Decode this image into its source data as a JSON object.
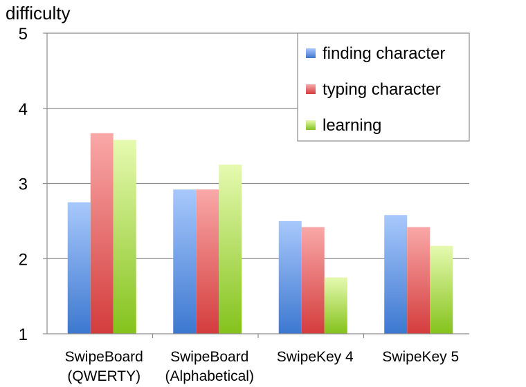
{
  "chart_data": {
    "type": "bar",
    "title": "",
    "xlabel": "",
    "ylabel": "difficulty",
    "ylim": [
      1,
      5
    ],
    "yticks": [
      1,
      2,
      3,
      4,
      5
    ],
    "grid": true,
    "legend_position": "top-right",
    "categories": [
      [
        "SwipeBoard",
        "(QWERTY)"
      ],
      [
        "SwipeBoard",
        "(Alphabetical)"
      ],
      [
        "SwipeKey 4"
      ],
      [
        "SwipeKey 5"
      ]
    ],
    "series": [
      {
        "name": "finding character",
        "color_top": "#a8c8fc",
        "color_bottom": "#3c78d0",
        "values": [
          2.75,
          2.92,
          2.5,
          2.58
        ]
      },
      {
        "name": "typing character",
        "color_top": "#f9a8a8",
        "color_bottom": "#d43c3c",
        "values": [
          3.67,
          2.92,
          2.42,
          2.42
        ]
      },
      {
        "name": "learning",
        "color_top": "#e6fab0",
        "color_bottom": "#84c21c",
        "values": [
          3.58,
          3.25,
          1.75,
          2.17
        ]
      }
    ]
  }
}
